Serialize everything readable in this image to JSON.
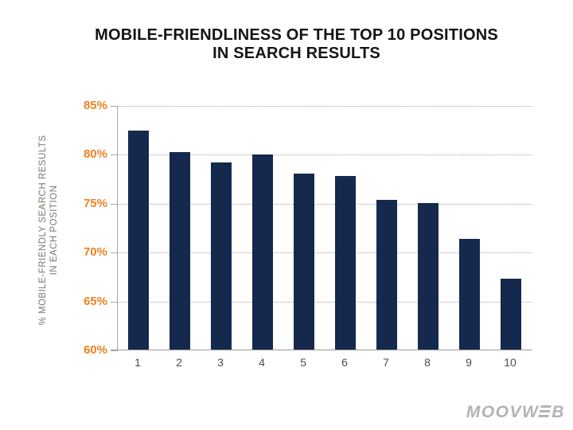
{
  "title": {
    "line1": "MOBILE-FRIENDLINESS OF THE TOP 10 POSITIONS",
    "line2": "IN SEARCH RESULTS"
  },
  "chart_data": {
    "type": "bar",
    "title": "MOBILE-FRIENDLINESS OF THE TOP 10 POSITIONS IN SEARCH RESULTS",
    "categories": [
      "1",
      "2",
      "3",
      "4",
      "5",
      "6",
      "7",
      "8",
      "9",
      "10"
    ],
    "values": [
      82.5,
      80.3,
      79.2,
      80.0,
      78.1,
      77.8,
      75.4,
      75.1,
      71.4,
      67.3
    ],
    "xlabel": "",
    "ylabel": "% MOBILE-FRIENDLY SEARCH RESULTS IN EACH POSITION",
    "ylabel_line1": "% MOBILE-FRIENDLY SEARCH RESULTS",
    "ylabel_line2": "IN EACH POSITION",
    "ylim": [
      60,
      85
    ],
    "ytick_values": [
      85,
      80,
      75,
      70,
      65,
      60
    ],
    "ytick_suffix": "%",
    "grid": "horizontal-dotted",
    "legend": "none"
  },
  "colors": {
    "bar": "#15294E",
    "ytick_label": "#ED8222",
    "xtick_label": "#4D4D4D",
    "axis": "#A6A6A6",
    "gridline": "#A3A3A3",
    "y_axis_title": "#7A776B",
    "title_text": "#141414",
    "logo": "#B1B3B6"
  },
  "logo": {
    "full": "MOOVWEB",
    "part1": "MOOVW",
    "part2": "B",
    "stylized_letter": "E"
  }
}
